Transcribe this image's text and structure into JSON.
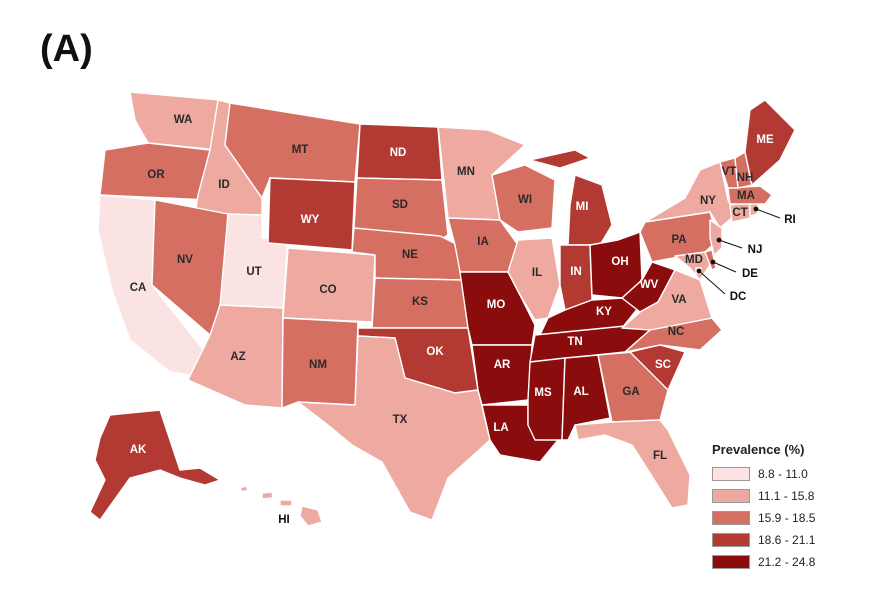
{
  "panel_label": "(A)",
  "legend": {
    "title": "Prevalence (%)",
    "bins": [
      {
        "label": "8.8 - 11.0",
        "color": "#fbe3e3"
      },
      {
        "label": "11.1 - 15.8",
        "color": "#eea9a0"
      },
      {
        "label": "15.9 - 18.5",
        "color": "#d56f62"
      },
      {
        "label": "18.6 - 21.1",
        "color": "#b33a32"
      },
      {
        "label": "21.2 - 24.8",
        "color": "#8a0c0c"
      }
    ]
  },
  "states": [
    {
      "abbr": "WA",
      "bin": 1
    },
    {
      "abbr": "OR",
      "bin": 2
    },
    {
      "abbr": "CA",
      "bin": 0
    },
    {
      "abbr": "ID",
      "bin": 1
    },
    {
      "abbr": "NV",
      "bin": 2
    },
    {
      "abbr": "UT",
      "bin": 0
    },
    {
      "abbr": "AZ",
      "bin": 1
    },
    {
      "abbr": "MT",
      "bin": 2
    },
    {
      "abbr": "WY",
      "bin": 3
    },
    {
      "abbr": "CO",
      "bin": 1
    },
    {
      "abbr": "NM",
      "bin": 2
    },
    {
      "abbr": "ND",
      "bin": 3
    },
    {
      "abbr": "SD",
      "bin": 2
    },
    {
      "abbr": "NE",
      "bin": 2
    },
    {
      "abbr": "KS",
      "bin": 2
    },
    {
      "abbr": "OK",
      "bin": 3
    },
    {
      "abbr": "TX",
      "bin": 1
    },
    {
      "abbr": "MN",
      "bin": 1
    },
    {
      "abbr": "IA",
      "bin": 2
    },
    {
      "abbr": "MO",
      "bin": 4
    },
    {
      "abbr": "AR",
      "bin": 4
    },
    {
      "abbr": "LA",
      "bin": 4
    },
    {
      "abbr": "WI",
      "bin": 2
    },
    {
      "abbr": "IL",
      "bin": 1
    },
    {
      "abbr": "MI",
      "bin": 3
    },
    {
      "abbr": "IN",
      "bin": 3
    },
    {
      "abbr": "OH",
      "bin": 4
    },
    {
      "abbr": "KY",
      "bin": 4
    },
    {
      "abbr": "TN",
      "bin": 4
    },
    {
      "abbr": "MS",
      "bin": 4
    },
    {
      "abbr": "AL",
      "bin": 4
    },
    {
      "abbr": "WV",
      "bin": 4
    },
    {
      "abbr": "GA",
      "bin": 2
    },
    {
      "abbr": "FL",
      "bin": 1
    },
    {
      "abbr": "SC",
      "bin": 3
    },
    {
      "abbr": "NC",
      "bin": 2
    },
    {
      "abbr": "VA",
      "bin": 1
    },
    {
      "abbr": "PA",
      "bin": 2
    },
    {
      "abbr": "NY",
      "bin": 1
    },
    {
      "abbr": "MD",
      "bin": 1
    },
    {
      "abbr": "DE",
      "bin": 2
    },
    {
      "abbr": "NJ",
      "bin": 1
    },
    {
      "abbr": "CT",
      "bin": 1
    },
    {
      "abbr": "RI",
      "bin": 1
    },
    {
      "abbr": "MA",
      "bin": 2
    },
    {
      "abbr": "VT",
      "bin": 2
    },
    {
      "abbr": "NH",
      "bin": 2
    },
    {
      "abbr": "ME",
      "bin": 3
    },
    {
      "abbr": "DC",
      "bin": 1
    },
    {
      "abbr": "AK",
      "bin": 3
    },
    {
      "abbr": "HI",
      "bin": 1
    }
  ]
}
